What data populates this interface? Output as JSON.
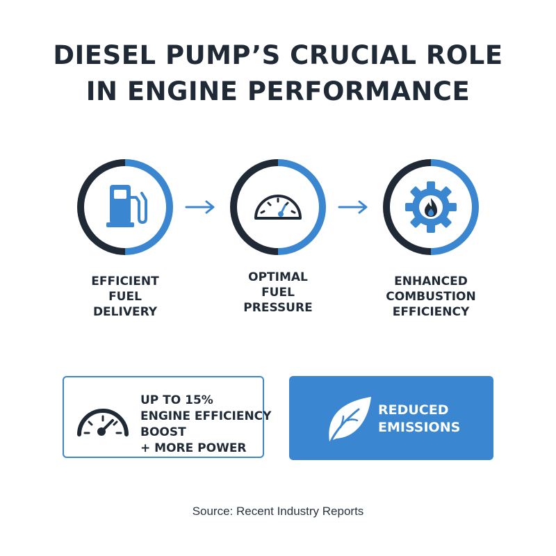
{
  "title": {
    "line1": "DIESEL PUMP’S CRUCIAL ROLE",
    "line2": "IN ENGINE PERFORMANCE"
  },
  "colors": {
    "dark": "#1f2a36",
    "accent": "#3a86d0",
    "background": "#ffffff"
  },
  "steps": [
    {
      "icon": "fuel-pump-icon",
      "label_lines": [
        "EFFICIENT",
        "FUEL",
        "DELIVERY"
      ]
    },
    {
      "icon": "pressure-gauge-icon",
      "label_lines": [
        "OPTIMAL",
        "FUEL",
        "PRESSURE"
      ]
    },
    {
      "icon": "gear-flame-icon",
      "label_lines": [
        "ENHANCED",
        "COMBUSTION",
        "EFFICIENCY"
      ]
    }
  ],
  "connectors": [
    "arrow-right-icon",
    "arrow-right-icon"
  ],
  "cards": {
    "efficiency": {
      "icon": "speedometer-icon",
      "lines": [
        "UP TO 15%",
        "ENGINE EFFICIENCY",
        "BOOST",
        "+ MORE POWER"
      ]
    },
    "emissions": {
      "icon": "leaf-icon",
      "lines": [
        "REDUCED",
        "EMISSIONS"
      ]
    }
  },
  "source": "Source: Recent Industry Reports"
}
